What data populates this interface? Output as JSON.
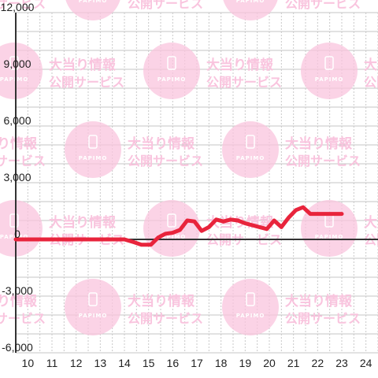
{
  "chart_data": {
    "type": "line",
    "title": "",
    "xlabel": "",
    "ylabel": "",
    "x_ticks": [
      "10",
      "11",
      "12",
      "13",
      "14",
      "15",
      "16",
      "17",
      "18",
      "19",
      "20",
      "21",
      "22",
      "23",
      "24"
    ],
    "y_ticks": [
      "12,000",
      "9,000",
      "6,000",
      "3,000",
      "0",
      "-3,000",
      "-6,000"
    ],
    "xlim": [
      9.5,
      24.5
    ],
    "ylim": [
      -6000,
      12000
    ],
    "grid": true,
    "series": [
      {
        "color": "#e8243c",
        "x": [
          9.5,
          10,
          11,
          12,
          13,
          14,
          14.4,
          14.7,
          15.1,
          15.4,
          15.7,
          16,
          16.3,
          16.6,
          16.9,
          17.2,
          17.5,
          17.8,
          18.1,
          18.4,
          18.7,
          19,
          19.3,
          19.6,
          19.9,
          20.2,
          20.5,
          20.8,
          21.1,
          21.4,
          21.7,
          22,
          22.3,
          22.6,
          23
        ],
        "y": [
          0,
          0,
          0,
          0,
          0,
          0,
          -150,
          -280,
          -280,
          100,
          300,
          350,
          500,
          1000,
          950,
          450,
          650,
          1050,
          950,
          1050,
          1000,
          850,
          750,
          650,
          550,
          1000,
          650,
          1150,
          1550,
          1700,
          1350,
          1350,
          1350,
          1350,
          1350
        ]
      }
    ]
  },
  "watermark": {
    "line1": "大当り情報",
    "line2": "公開サービス",
    "logo": "PAPIMO",
    "color": "#f9c4de"
  }
}
